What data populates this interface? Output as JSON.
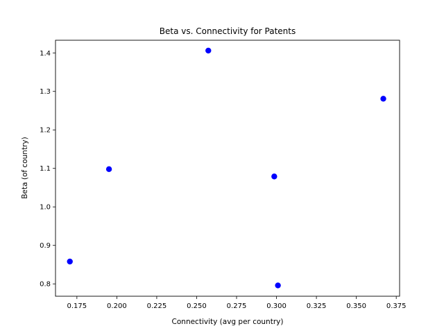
{
  "chart_data": {
    "type": "scatter",
    "title": "Beta vs. Connectivity for Patents",
    "xlabel": "Connectivity (avg per country)",
    "ylabel": "Beta (of country)",
    "xlim": [
      0.1616,
      0.3771
    ],
    "ylim": [
      0.7679,
      1.4329
    ],
    "xticks": [
      0.175,
      0.2,
      0.225,
      0.25,
      0.275,
      0.3,
      0.325,
      0.35,
      0.375
    ],
    "xtick_labels": [
      "0.175",
      "0.200",
      "0.225",
      "0.250",
      "0.275",
      "0.300",
      "0.325",
      "0.350",
      "0.375"
    ],
    "yticks": [
      0.8,
      0.9,
      1.0,
      1.1,
      1.2,
      1.3,
      1.4
    ],
    "ytick_labels": [
      "0.8",
      "0.9",
      "1.0",
      "1.1",
      "1.2",
      "1.3",
      "1.4"
    ],
    "grid": false,
    "marker_color": "#0000ff",
    "points": [
      {
        "x": 0.1706,
        "y": 0.858
      },
      {
        "x": 0.1951,
        "y": 1.098
      },
      {
        "x": 0.2573,
        "y": 1.406
      },
      {
        "x": 0.2986,
        "y": 1.079
      },
      {
        "x": 0.3009,
        "y": 0.796
      },
      {
        "x": 0.3669,
        "y": 1.281
      }
    ]
  }
}
